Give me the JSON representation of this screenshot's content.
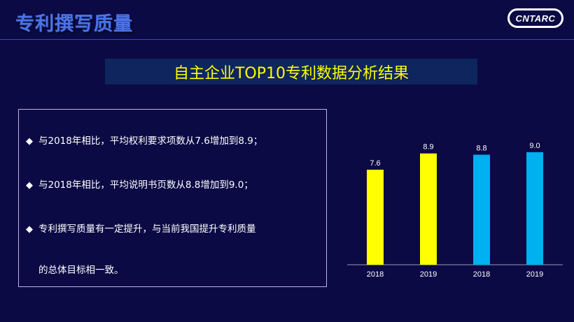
{
  "header": {
    "title": "专利撰写质量",
    "logo_text": "CNTARC"
  },
  "banner": {
    "title": "自主企业TOP10专利数据分析结果"
  },
  "bullets": {
    "b1": "与2018年相比，平均权利要求项数从7.6增加到8.9；",
    "b2": "与2018年相比，平均说明书页数从8.8增加到9.0；",
    "b3_line1": "专利撰写质量有一定提升，与当前我国提升专利质量",
    "b3_line2": "的总体目标相一致。",
    "marker": "◆"
  },
  "chart_data": {
    "type": "bar",
    "categories": [
      "2018",
      "2019",
      "2018",
      "2019"
    ],
    "values": [
      7.6,
      8.9,
      8.8,
      9.0
    ],
    "bar_colors": [
      "#ffff00",
      "#ffff00",
      "#00b0f0",
      "#00b0f0"
    ],
    "ylim": [
      0,
      10
    ],
    "grid": false
  },
  "colors": {
    "background": "#0b0a45",
    "title_blue": "#4c73e6",
    "banner_bg": "#0f255e",
    "banner_text": "#ffff00",
    "yellow_bar": "#ffff00",
    "blue_bar": "#00b0f0"
  }
}
